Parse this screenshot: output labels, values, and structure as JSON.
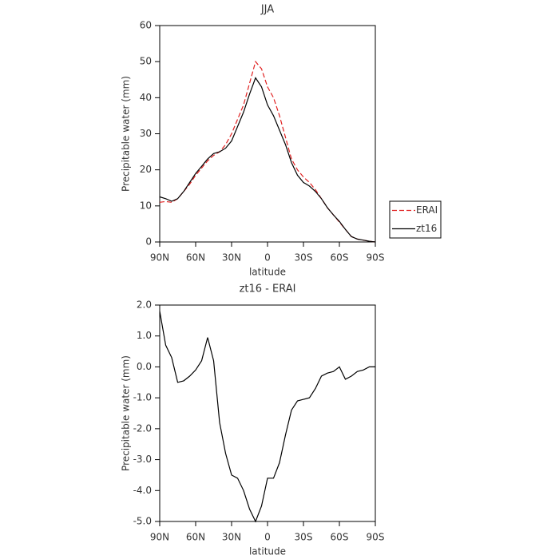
{
  "chart_data": [
    {
      "type": "line",
      "title": "JJA",
      "xlabel": "latitude",
      "ylabel": "Precipitable water (mm)",
      "x": [
        90,
        85,
        80,
        75,
        70,
        65,
        60,
        55,
        50,
        45,
        40,
        35,
        30,
        25,
        20,
        15,
        10,
        5,
        0,
        -5,
        -10,
        -15,
        -20,
        -25,
        -30,
        -35,
        -40,
        -45,
        -50,
        -55,
        -60,
        -65,
        -70,
        -75,
        -80,
        -85,
        -90
      ],
      "series": [
        {
          "name": "ERAI",
          "color": "#e02020",
          "dash": true,
          "values": [
            11,
            11.2,
            11,
            12,
            14,
            16,
            18.5,
            20.5,
            22.5,
            24,
            25,
            27,
            30,
            34,
            38,
            44,
            50,
            48,
            43,
            40,
            35,
            29,
            23,
            20,
            18,
            16.5,
            14.5,
            12,
            9.5,
            7.5,
            5.5,
            3.5,
            1.5,
            0.8,
            0.5,
            0.2,
            0
          ]
        },
        {
          "name": "zt16",
          "color": "#000000",
          "dash": false,
          "values": [
            12.5,
            12,
            11.3,
            12,
            14,
            16.5,
            19,
            21,
            23,
            24.5,
            25,
            26,
            28,
            32,
            36,
            41,
            45.5,
            43,
            38,
            35,
            31,
            27,
            22,
            18.5,
            16.5,
            15.5,
            14,
            12,
            9.5,
            7.5,
            5.7,
            3.5,
            1.5,
            0.8,
            0.5,
            0.2,
            0
          ]
        }
      ],
      "xlim": [
        90,
        -90
      ],
      "xticks": [
        {
          "value": 90,
          "label": "90N"
        },
        {
          "value": 60,
          "label": "60N"
        },
        {
          "value": 30,
          "label": "30N"
        },
        0,
        {
          "value": -30,
          "label": "30S"
        },
        {
          "value": -60,
          "label": "60S"
        },
        {
          "value": -90,
          "label": "90S"
        }
      ],
      "ylim": [
        0,
        60
      ],
      "yticks": [
        0,
        10,
        20,
        30,
        40,
        50,
        60
      ]
    },
    {
      "type": "line",
      "title": "zt16 - ERAI",
      "xlabel": "latitude",
      "ylabel": "Precipitable water (mm)",
      "x": [
        90,
        85,
        80,
        75,
        70,
        65,
        60,
        55,
        50,
        45,
        40,
        35,
        30,
        25,
        20,
        15,
        10,
        5,
        0,
        -5,
        -10,
        -15,
        -20,
        -25,
        -30,
        -35,
        -40,
        -45,
        -50,
        -55,
        -60,
        -65,
        -70,
        -75,
        -80,
        -85,
        -90
      ],
      "series": [
        {
          "color": "#000000",
          "dash": false,
          "values": [
            1.8,
            0.7,
            0.3,
            -0.5,
            -0.45,
            -0.3,
            -0.1,
            0.2,
            0.95,
            0.2,
            -1.8,
            -2.8,
            -3.5,
            -3.6,
            -4.0,
            -4.6,
            -5.0,
            -4.5,
            -3.6,
            -3.6,
            -3.1,
            -2.2,
            -1.4,
            -1.1,
            -1.05,
            -1.0,
            -0.7,
            -0.3,
            -0.2,
            -0.15,
            0.0,
            -0.4,
            -0.3,
            -0.15,
            -0.1,
            0,
            0
          ]
        }
      ],
      "xlim": [
        90,
        -90
      ],
      "xticks": [
        {
          "value": 90,
          "label": "90N"
        },
        {
          "value": 60,
          "label": "60N"
        },
        {
          "value": 30,
          "label": "30N"
        },
        0,
        {
          "value": -30,
          "label": "30S"
        },
        {
          "value": -60,
          "label": "60S"
        },
        {
          "value": -90,
          "label": "90S"
        }
      ],
      "ylim": [
        -5,
        2
      ],
      "yticks": [
        {
          "value": -5,
          "label": "-5.0"
        },
        {
          "value": -4,
          "label": "-4.0"
        },
        {
          "value": -3,
          "label": "-3.0"
        },
        {
          "value": -2,
          "label": "-2.0"
        },
        {
          "value": -1,
          "label": "-1.0"
        },
        {
          "value": 0,
          "label": "0.0"
        },
        {
          "value": 1,
          "label": "1.0"
        },
        {
          "value": 2,
          "label": "2.0"
        }
      ]
    }
  ]
}
